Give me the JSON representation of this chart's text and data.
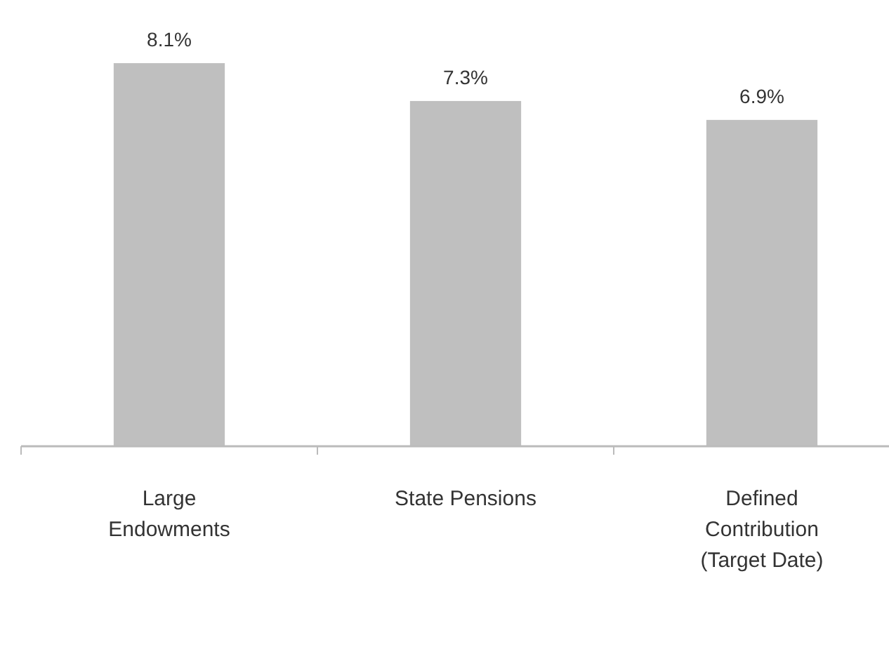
{
  "chart_data": {
    "type": "bar",
    "categories": [
      "Large Endowments",
      "State Pensions",
      "Defined Contribution (Target Date)"
    ],
    "values": [
      8.1,
      7.3,
      6.9
    ],
    "value_labels": [
      "8.1%",
      "7.3%",
      "6.9%"
    ],
    "color": "#bfbfbf"
  }
}
